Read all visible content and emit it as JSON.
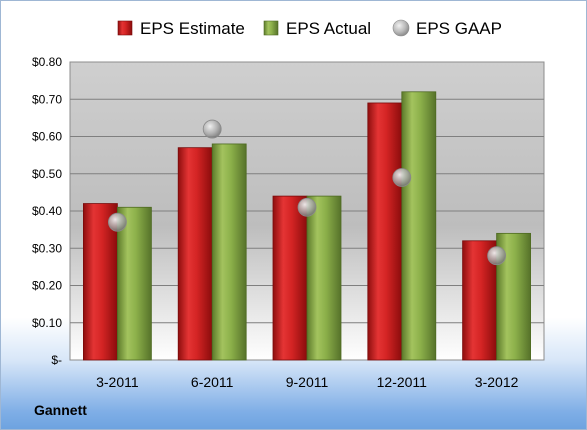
{
  "chart_data": {
    "type": "bar",
    "title": "",
    "xlabel": "",
    "ylabel": "",
    "categories": [
      "3-2011",
      "6-2011",
      "9-2011",
      "12-2011",
      "3-2012"
    ],
    "series": [
      {
        "name": "EPS Estimate",
        "kind": "bar",
        "color": "#d42424",
        "values": [
          0.42,
          0.57,
          0.44,
          0.69,
          0.32
        ]
      },
      {
        "name": "EPS Actual",
        "kind": "bar",
        "color": "#8cb04a",
        "values": [
          0.41,
          0.58,
          0.44,
          0.72,
          0.34
        ]
      },
      {
        "name": "EPS GAAP",
        "kind": "marker",
        "color": "#a6a6a6",
        "values": [
          0.37,
          0.62,
          0.41,
          0.49,
          0.28
        ]
      }
    ],
    "ylim": [
      0,
      0.8
    ],
    "yticks": [
      0,
      0.1,
      0.2,
      0.3,
      0.4,
      0.5,
      0.6,
      0.7,
      0.8
    ],
    "ytick_labels": [
      "$-",
      "$0.10",
      "$0.20",
      "$0.30",
      "$0.40",
      "$0.50",
      "$0.60",
      "$0.70",
      "$0.80"
    ],
    "grid": true,
    "legend_position": "top"
  },
  "footer": {
    "company": "Gannett"
  }
}
